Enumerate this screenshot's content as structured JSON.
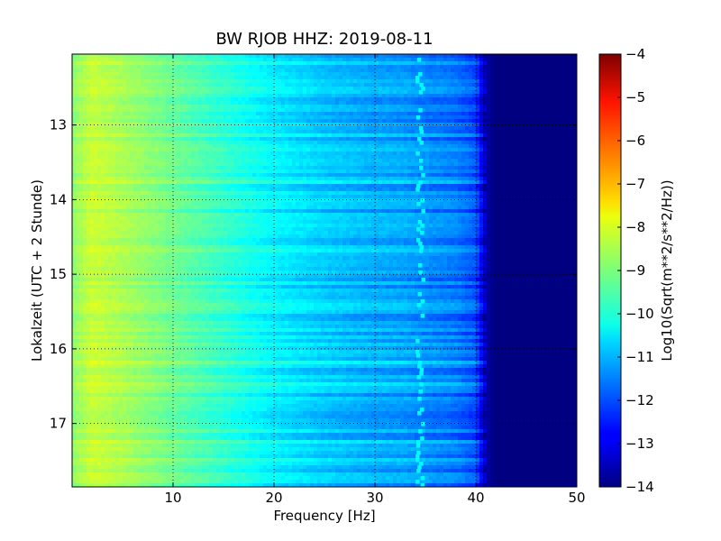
{
  "chart_data": {
    "type": "heatmap",
    "title": "BW RJOB HHZ: 2019-08-11",
    "xlabel": "Frequency [Hz]",
    "ylabel": "Lokalzeit (UTC + 2 Stunde)",
    "xlim": [
      0,
      50
    ],
    "ylim": [
      12.05,
      17.85
    ],
    "y_inverted": true,
    "grid": true,
    "x_ticks": [
      10,
      20,
      30,
      40,
      50
    ],
    "y_ticks": [
      13,
      14,
      15,
      16,
      17
    ],
    "colorbar": {
      "label": "Log10(Sqrt(m**2/s**2/Hz))",
      "range": [
        -14,
        -4
      ],
      "ticks": [
        -4,
        -5,
        -6,
        -7,
        -8,
        -9,
        -10,
        -11,
        -12,
        -13,
        -14
      ],
      "colormap": "jet"
    },
    "spectrum_profile": {
      "frequency": [
        0,
        2,
        5,
        10,
        15,
        20,
        25,
        30,
        33,
        35,
        38,
        40,
        41,
        42,
        50
      ],
      "value": [
        -8.9,
        -8.3,
        -8.6,
        -9.2,
        -9.8,
        -10.4,
        -10.8,
        -11.1,
        -11.2,
        -11.4,
        -11.6,
        -12.0,
        -13.6,
        -14,
        -14
      ]
    },
    "spectral_line_hz": 34.5
  }
}
